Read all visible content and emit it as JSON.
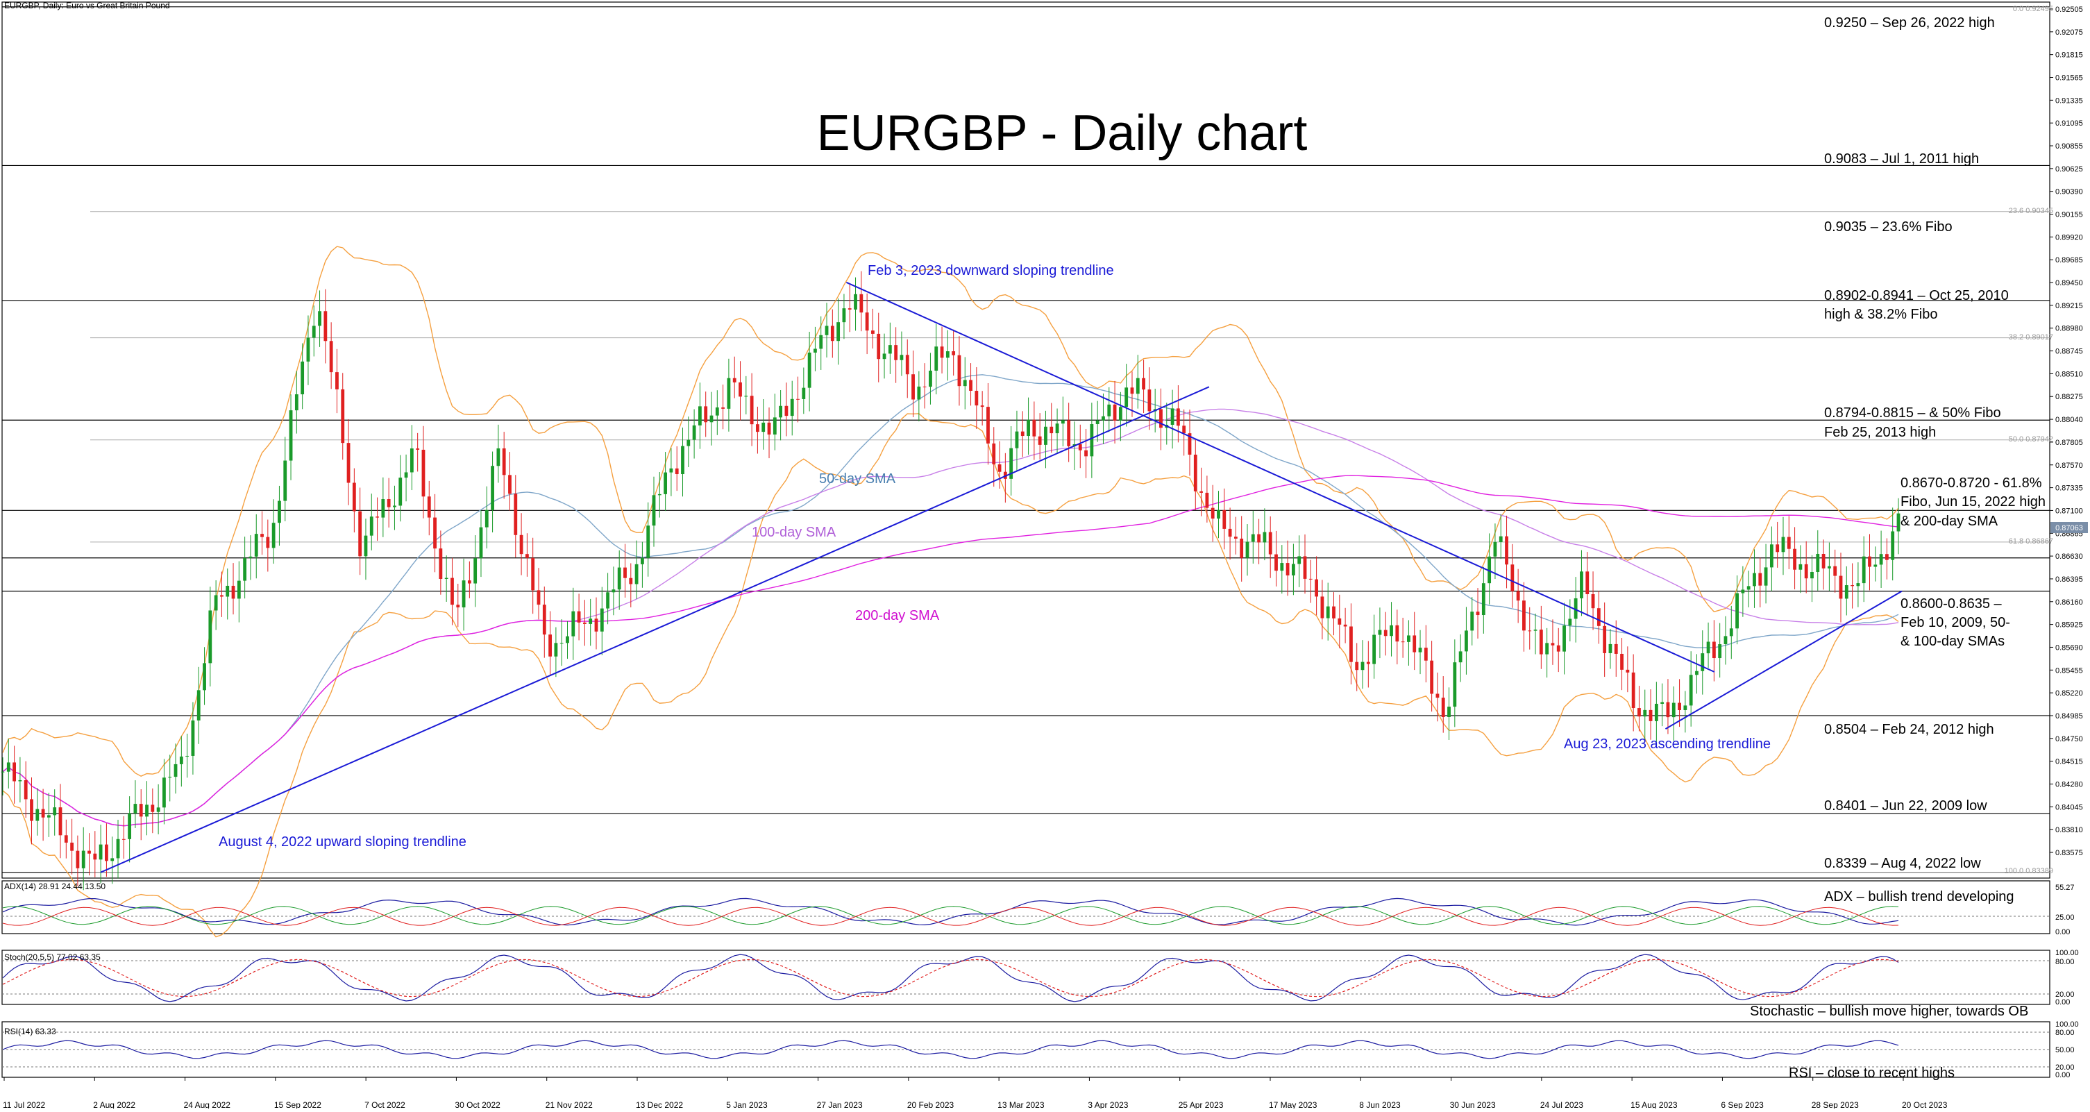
{
  "header": {
    "symbol_line": "EURGBP, Daily:  Euro vs Great Britain Pound",
    "adx_line": "ADX(14) 28.91 24.44 13.50",
    "stoch_line": "Stoch(20,5,5) 77.02 63.35",
    "rsi_line": "RSI(14) 63.33"
  },
  "chart_data": {
    "type": "candlestick",
    "title": "EURGBP - Daily chart",
    "y_ticks": [
      "0.92505",
      "0.92075",
      "0.91815",
      "0.91565",
      "0.91335",
      "0.91095",
      "0.90855",
      "0.90625",
      "0.90390",
      "0.90155",
      "0.89920",
      "0.89685",
      "0.89450",
      "0.89215",
      "0.88980",
      "0.88745",
      "0.88510",
      "0.88275",
      "0.88040",
      "0.87805",
      "0.87570",
      "0.87335",
      "0.87100",
      "0.86865",
      "0.86630",
      "0.86395",
      "0.86160",
      "0.85925",
      "0.85690",
      "0.85455",
      "0.85220",
      "0.84985",
      "0.84750",
      "0.84515",
      "0.84280",
      "0.84045",
      "0.83810",
      "0.83575"
    ],
    "ylim": [
      0.8333,
      0.9255
    ],
    "x_ticks": [
      "11 Jul 2022",
      "2 Aug 2022",
      "24 Aug 2022",
      "15 Sep 2022",
      "7 Oct 2022",
      "30 Oct 2022",
      "21 Nov 2022",
      "13 Dec 2022",
      "5 Jan 2023",
      "27 Jan 2023",
      "20 Feb 2023",
      "13 Mar 2023",
      "3 Apr 2023",
      "25 Apr 2023",
      "17 May 2023",
      "8 Jun 2023",
      "30 Jun 2023",
      "24 Jul 2023",
      "15 Aug 2023",
      "6 Sep 2023",
      "28 Sep 2023",
      "20 Oct 2023"
    ],
    "price_path": [
      [
        "11 Jul 2022",
        0.8445
      ],
      [
        "2 Aug 2022",
        0.8345
      ],
      [
        "24 Aug 2022",
        0.845
      ],
      [
        "1 Sep 2022",
        0.862
      ],
      [
        "15 Sep 2022",
        0.87
      ],
      [
        "26 Sep 2022",
        0.895
      ],
      [
        "7 Oct 2022",
        0.868
      ],
      [
        "20 Oct 2022",
        0.878
      ],
      [
        "30 Oct 2022",
        0.86
      ],
      [
        "10 Nov 2022",
        0.878
      ],
      [
        "21 Nov 2022",
        0.858
      ],
      [
        "1 Dec 2022",
        0.86
      ],
      [
        "13 Dec 2022",
        0.866
      ],
      [
        "22 Dec 2022",
        0.877
      ],
      [
        "5 Jan 2023",
        0.885
      ],
      [
        "16 Jan 2023",
        0.88
      ],
      [
        "27 Jan 2023",
        0.889
      ],
      [
        "3 Feb 2023",
        0.894
      ],
      [
        "20 Feb 2023",
        0.885
      ],
      [
        "1 Mar 2023",
        0.889
      ],
      [
        "13 Mar 2023",
        0.876
      ],
      [
        "20 Mar 2023",
        0.881
      ],
      [
        "3 Apr 2023",
        0.879
      ],
      [
        "13 Apr 2023",
        0.885
      ],
      [
        "25 Apr 2023",
        0.881
      ],
      [
        "5 May 2023",
        0.87
      ],
      [
        "17 May 2023",
        0.868
      ],
      [
        "29 May 2023",
        0.864
      ],
      [
        "8 Jun 2023",
        0.856
      ],
      [
        "19 Jun 2023",
        0.86
      ],
      [
        "30 Jun 2023",
        0.851
      ],
      [
        "12 Jul 2023",
        0.869
      ],
      [
        "24 Jul 2023",
        0.856
      ],
      [
        "3 Aug 2023",
        0.864
      ],
      [
        "15 Aug 2023",
        0.852
      ],
      [
        "23 Aug 2023",
        0.85
      ],
      [
        "6 Sep 2023",
        0.859
      ],
      [
        "18 Sep 2023",
        0.868
      ],
      [
        "28 Sep 2023",
        0.866
      ],
      [
        "9 Oct 2023",
        0.864
      ],
      [
        "20 Oct 2023",
        0.871
      ]
    ],
    "overlay_labels": [
      "50-day SMA",
      "100-day SMA",
      "200-day SMA"
    ],
    "trendline_labels": [
      "Feb 3, 2023 downward sloping trendline",
      "August 4, 2022 upward sloping trendline",
      "Aug 23, 2023 ascending trendline"
    ],
    "fibo_labels": [
      "0.0 0.92495",
      "23.6 0.90345",
      "38.2 0.89017",
      "50.0 0.87942",
      "61.8 0.86867",
      "100.0 0.83389"
    ],
    "current_price": "0.87063",
    "levels": [
      {
        "lines": [
          "0.9250 – Sep 26, 2022 high"
        ]
      },
      {
        "lines": [
          "0.9083 – Jul 1, 2011 high"
        ]
      },
      {
        "lines": [
          "0.9035 – 23.6% Fibo"
        ]
      },
      {
        "lines": [
          "0.8902-0.8941 – Oct 25, 2010",
          "high & 38.2% Fibo"
        ]
      },
      {
        "lines": [
          "0.8794-0.8815 – & 50% Fibo",
          "Feb 25, 2013 high"
        ]
      },
      {
        "lines": [
          "0.8670-0.8720 - 61.8%",
          "Fibo, Jun 15, 2022 high",
          "& 200-day SMA"
        ]
      },
      {
        "lines": [
          "0.8600-0.8635 –",
          "Feb 10, 2009, 50-",
          "& 100-day SMAs"
        ]
      },
      {
        "lines": [
          "0.8504 – Feb 24, 2012 high"
        ]
      },
      {
        "lines": [
          "0.8401 – Jun 22, 2009 low"
        ]
      },
      {
        "lines": [
          "0.8339 – Aug 4, 2022 low"
        ]
      }
    ],
    "colors": {
      "bull": "#1a9a2a",
      "bear": "#e02020",
      "bands": "#f5a040",
      "sma50": "#7fa6c9",
      "sma100": "#c880e8",
      "sma200": "#e020e0",
      "trend": "#1a1ad6"
    }
  },
  "indicators": {
    "adx": {
      "note": "ADX – bullish trend developing",
      "ticks": [
        "55.27",
        "25.00",
        "0.00"
      ]
    },
    "stoch": {
      "note": "Stochastic – bullish move higher, towards OB",
      "ticks": [
        "100.00",
        "80.00",
        "20.00",
        "0.00"
      ]
    },
    "rsi": {
      "note": "RSI – close to recent highs",
      "ticks": [
        "100.00",
        "80.00",
        "50.00",
        "20.00",
        "0.00"
      ]
    }
  }
}
